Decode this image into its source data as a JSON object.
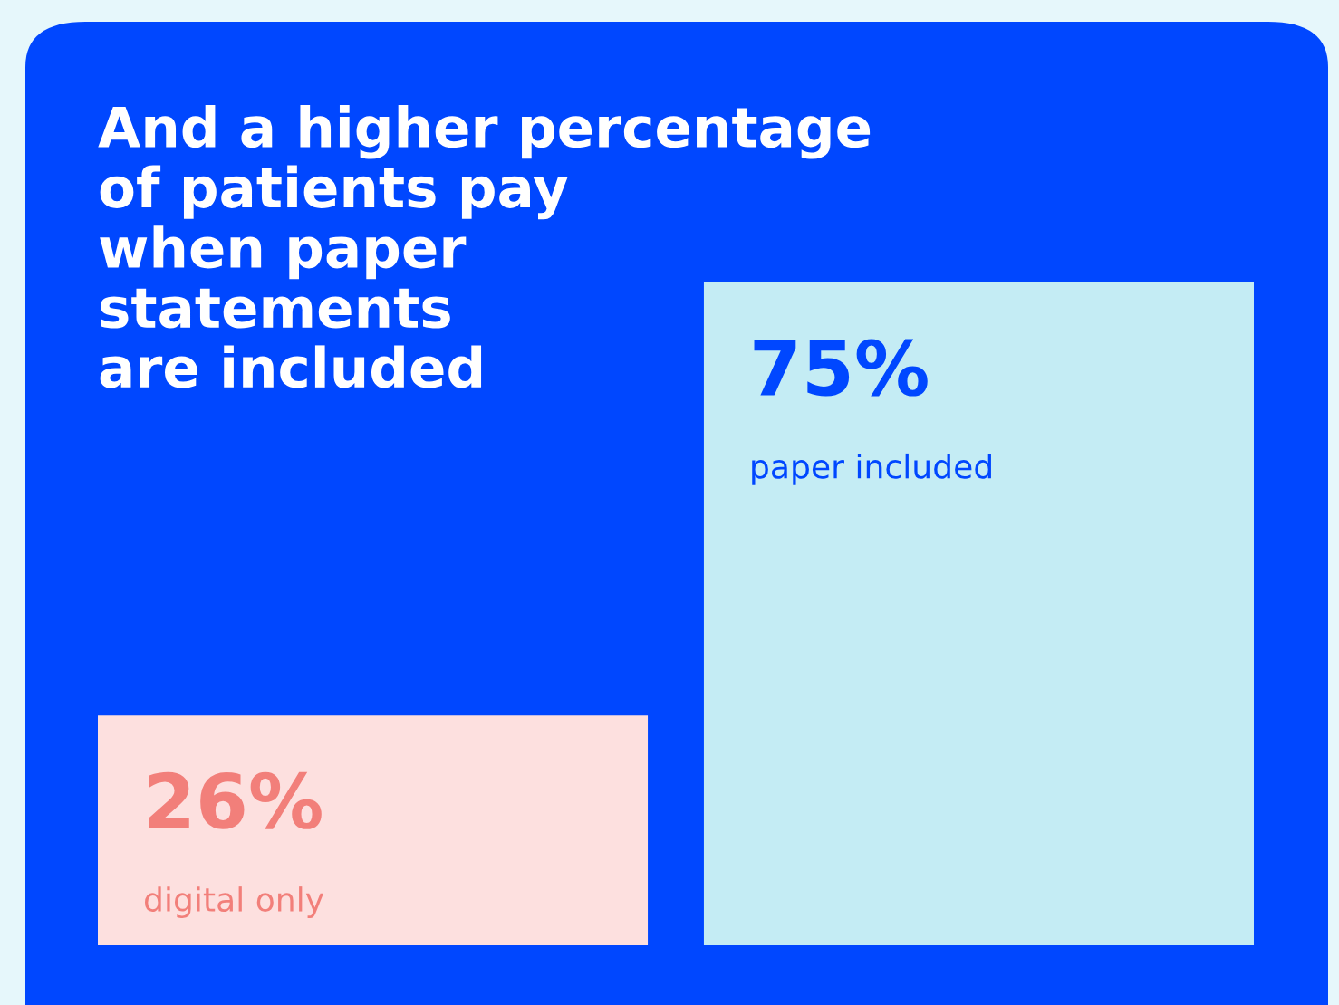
{
  "chart_data": {
    "type": "bar",
    "title": "And a higher percentage\nof patients pay\nwhen paper\nstatements\nare included",
    "categories": [
      "digital only",
      "paper included"
    ],
    "values": [
      26,
      75
    ],
    "colors": [
      "#fde0df",
      "#c4ecf4"
    ],
    "value_labels": [
      "26%",
      "75%"
    ],
    "ylim": [
      0,
      75
    ]
  }
}
